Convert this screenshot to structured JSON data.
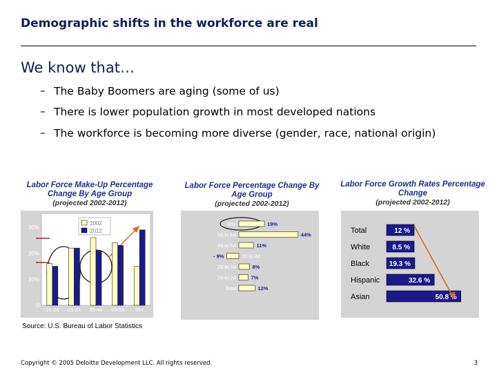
{
  "title": "Demographic shifts in the workforce are real",
  "lead": "We know that…",
  "bullets": [
    "The Baby Boomers are aging (some of us)",
    "There is lower population growth in most developed nations",
    "The workforce is becoming more diverse (gender, race, national origin)"
  ],
  "bullet_dash": "–",
  "colors": {
    "title": "#0a1f5c",
    "chart_title": "#1d2f8f",
    "bar_2002": "#ffffc2",
    "bar_2012": "#1a1a8c",
    "panel_bg": "#d4d4d4"
  },
  "chart_data": [
    {
      "type": "bar",
      "title": "Labor Force Make-Up Percentage Change By Age Group",
      "subtitle": "(projected 2002-2012)",
      "categories": [
        "16-24",
        "25-34",
        "35-44",
        "45-54",
        "55+"
      ],
      "series": [
        {
          "name": "2002",
          "values": [
            16,
            22,
            26,
            24,
            15
          ]
        },
        {
          "name": "2012",
          "values": [
            15,
            22,
            21,
            23,
            29
          ]
        }
      ],
      "yticks": [
        "30%",
        "20%",
        "10%",
        "0"
      ],
      "ylim": [
        0,
        30
      ]
    },
    {
      "type": "bar",
      "orientation": "horizontal",
      "title": "Labor Force Percentage Change By Age Group",
      "subtitle": "(projected 2002-2012)",
      "categories": [
        "65+",
        "55 to 64",
        "45 to 54",
        "35 to 44",
        "25 to 34",
        "16 to 24",
        "Total"
      ],
      "values": [
        19,
        44,
        11,
        -9,
        8,
        7,
        12
      ],
      "labels": [
        "19%",
        "44%",
        "11%",
        "- 9%",
        "8%",
        "7%",
        "12%"
      ]
    },
    {
      "type": "bar",
      "orientation": "horizontal",
      "title": "Labor Force Growth Rates Percentage Change",
      "subtitle": "(projected 2002-2012)",
      "categories": [
        "Total",
        "White",
        "Black",
        "Hispanic",
        "Asian"
      ],
      "values": [
        12,
        8.5,
        19.3,
        32.6,
        50.8
      ],
      "labels": [
        "12 %",
        "8.5 %",
        "19.3 %",
        "32.6 %",
        "50.8 %"
      ]
    }
  ],
  "source": "Source: U.S. Bureau of Labor Statistics",
  "footer": {
    "copyright": "Copyright © 2005 Deloitte Development LLC. All rights reserved.",
    "page": "3"
  }
}
